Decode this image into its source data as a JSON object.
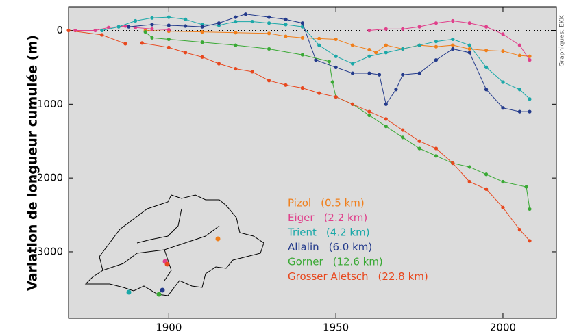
{
  "chart_data": {
    "type": "line",
    "y_label": "Variation de longueur cumulée (m)",
    "credit": "Graphiques: EKK",
    "xlim": [
      1870,
      2016
    ],
    "ylim": [
      -3900,
      320
    ],
    "xticks": [
      1900,
      1950,
      2000
    ],
    "yticks": [
      0,
      -1000,
      -2000,
      -3000
    ],
    "zero_line": true,
    "series": [
      {
        "name": "Pizol",
        "length_label": "(0.5 km)",
        "color": "#f07f1b",
        "x": [
          1893,
          1900,
          1910,
          1920,
          1930,
          1935,
          1940,
          1945,
          1950,
          1955,
          1960,
          1962,
          1965,
          1970,
          1975,
          1980,
          1985,
          1990,
          1995,
          2000,
          2005,
          2008
        ],
        "values": [
          0,
          -10,
          -20,
          -30,
          -40,
          -80,
          -100,
          -110,
          -120,
          -200,
          -260,
          -300,
          -200,
          -250,
          -200,
          -220,
          -200,
          -250,
          -270,
          -280,
          -340,
          -350
        ]
      },
      {
        "name": "Eiger",
        "length_label": "(2.2 km)",
        "color": "#e0408b",
        "x": [
          1872,
          1878,
          1882,
          1887,
          1890,
          1895,
          1900,
          1930,
          1960,
          1965,
          1970,
          1975,
          1980,
          1985,
          1990,
          1995,
          2000,
          2005,
          2008
        ],
        "values": [
          0,
          0,
          40,
          60,
          40,
          20,
          10,
          null,
          0,
          20,
          20,
          50,
          100,
          130,
          100,
          50,
          -50,
          -200,
          -400
        ]
      },
      {
        "name": "Trient",
        "length_label": "(4.2 km)",
        "color": "#1aa8a8",
        "x": [
          1880,
          1885,
          1890,
          1895,
          1900,
          1905,
          1910,
          1915,
          1920,
          1925,
          1930,
          1935,
          1940,
          1945,
          1950,
          1955,
          1960,
          1965,
          1970,
          1975,
          1980,
          1985,
          1990,
          1995,
          2000,
          2005,
          2008
        ],
        "values": [
          0,
          50,
          130,
          170,
          180,
          150,
          80,
          70,
          120,
          120,
          100,
          80,
          50,
          -200,
          -350,
          -450,
          -350,
          -300,
          -250,
          -200,
          -150,
          -120,
          -200,
          -500,
          -700,
          -800,
          -930
        ]
      },
      {
        "name": "Allalin",
        "length_label": "(6.0 km)",
        "color": "#233a8b",
        "x": [
          1888,
          1895,
          1900,
          1905,
          1910,
          1915,
          1920,
          1923,
          1930,
          1935,
          1940,
          1944,
          1950,
          1955,
          1960,
          1963,
          1965,
          1968,
          1970,
          1975,
          1980,
          1985,
          1990,
          1995,
          2000,
          2005,
          2008
        ],
        "values": [
          50,
          80,
          70,
          60,
          50,
          100,
          180,
          220,
          180,
          150,
          100,
          -400,
          -500,
          -580,
          -580,
          -600,
          -1000,
          -800,
          -600,
          -580,
          -400,
          -250,
          -300,
          -800,
          -1050,
          -1100,
          -1100
        ]
      },
      {
        "name": "Gorner",
        "length_label": "(12.6 km)",
        "color": "#3aa935",
        "x": [
          1893,
          1895,
          1900,
          1910,
          1920,
          1930,
          1940,
          1948,
          1949,
          1950,
          1955,
          1960,
          1965,
          1970,
          1975,
          1980,
          1985,
          1990,
          1995,
          2000,
          2007,
          2008
        ],
        "values": [
          -20,
          -100,
          -120,
          -160,
          -200,
          -250,
          -330,
          -420,
          -700,
          -900,
          -1000,
          -1150,
          -1300,
          -1450,
          -1600,
          -1700,
          -1800,
          -1850,
          -1950,
          -2050,
          -2120,
          -2420
        ]
      },
      {
        "name": "Grosser Aletsch",
        "length_label": "(22.8 km)",
        "color": "#e8471d",
        "x": [
          1870,
          1880,
          1887,
          1890,
          1892,
          1900,
          1905,
          1910,
          1915,
          1920,
          1925,
          1930,
          1935,
          1940,
          1945,
          1950,
          1955,
          1960,
          1965,
          1970,
          1975,
          1980,
          1985,
          1990,
          1995,
          2000,
          2005,
          2008
        ],
        "values": [
          0,
          -60,
          -180,
          null,
          -170,
          -230,
          -300,
          -360,
          -450,
          -520,
          -560,
          -680,
          -740,
          -780,
          -850,
          -900,
          -1000,
          -1100,
          -1200,
          -1350,
          -1500,
          -1600,
          -1800,
          -2050,
          -2150,
          -2400,
          -2700,
          -2850
        ]
      }
    ]
  }
}
